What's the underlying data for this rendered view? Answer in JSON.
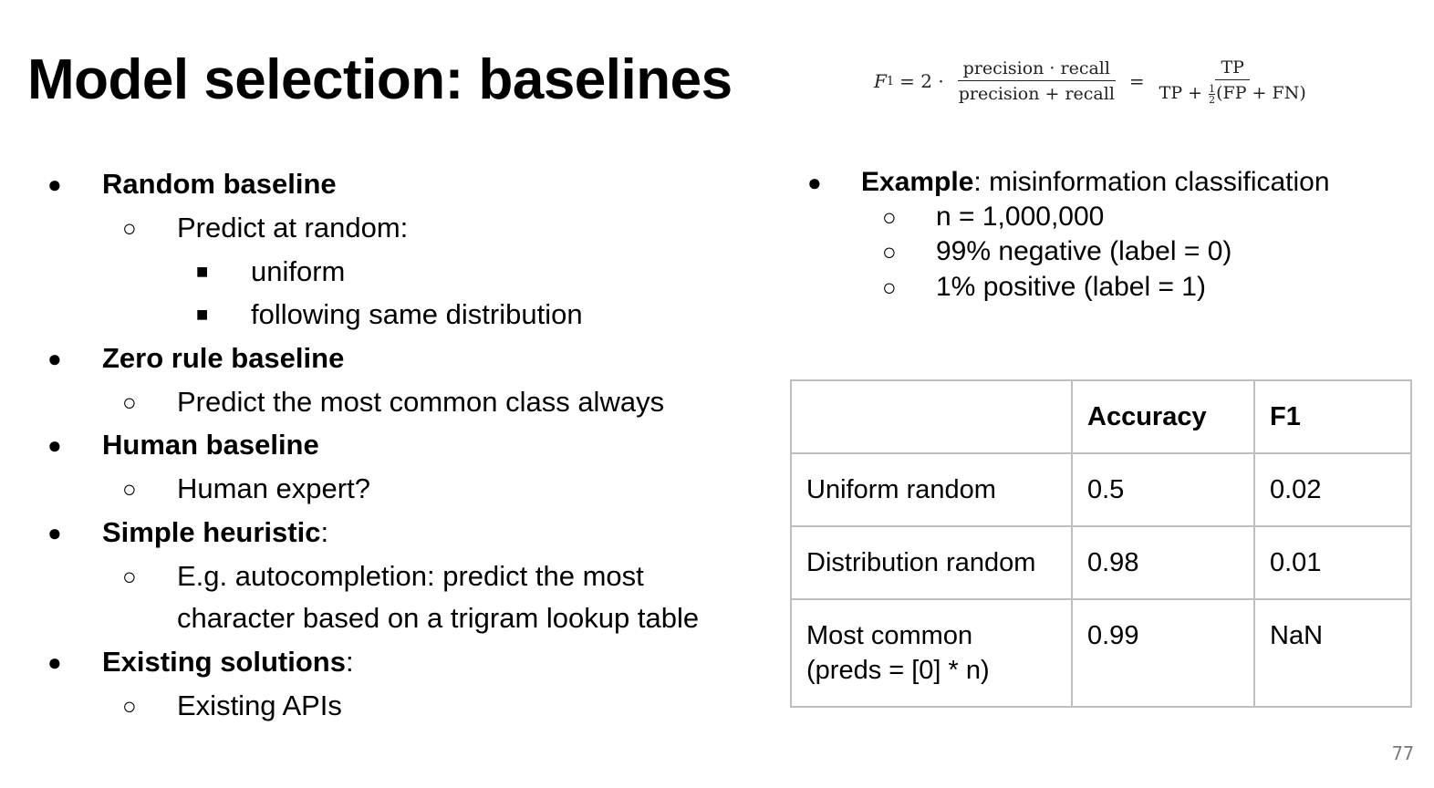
{
  "title": "Model selection: baselines",
  "formula": {
    "lhs": "F",
    "lhs_sub": "1",
    "eq1": "= 2 ·",
    "frac1_num": "precision · recall",
    "frac1_den": "precision + recall",
    "eq2": "=",
    "frac2_num": "TP",
    "frac2_den_pre": "TP +",
    "half_num": "1",
    "half_den": "2",
    "frac2_den_post": "(FP + FN)"
  },
  "left_list": {
    "b1": "Random baseline",
    "b1_s1": "Predict at random:",
    "b1_s1_a": "uniform",
    "b1_s1_b": "following same distribution",
    "b2": "Zero rule baseline",
    "b2_s1": "Predict the most common class always",
    "b3": "Human baseline",
    "b3_s1": "Human expert?",
    "b4": "Simple heuristic",
    "b4_suffix": ":",
    "b4_s1_line1": "E.g. autocompletion: predict the most",
    "b4_s1_line2": "character based on a trigram lookup table",
    "b5": "Existing solutions",
    "b5_suffix": ":",
    "b5_s1": "Existing APIs"
  },
  "right_list": {
    "example_label": "Example",
    "example_text": ": misinformation classification",
    "s1": "n = 1,000,000",
    "s2": "99% negative (label = 0)",
    "s3": "1% positive (label = 1)"
  },
  "bullets": {
    "disc": "●",
    "circle": "○",
    "square": "■"
  },
  "table": {
    "headers": [
      "",
      "Accuracy",
      "F1"
    ],
    "rows": [
      [
        "Uniform random",
        "0.5",
        "0.02"
      ],
      [
        "Distribution random",
        "0.98",
        "0.01"
      ],
      [
        "Most common",
        "0.99",
        "NaN"
      ]
    ],
    "row3_line2": "(preds = [0] * n)"
  },
  "page_number": "77"
}
